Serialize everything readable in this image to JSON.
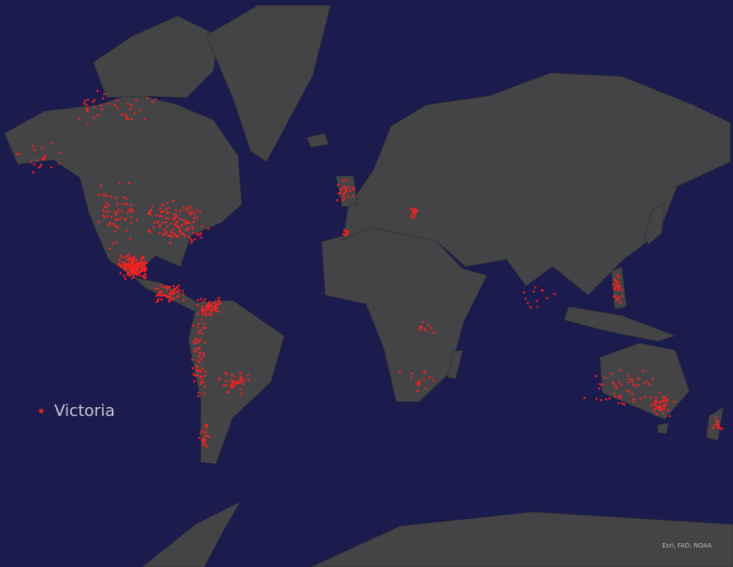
{
  "map": {
    "basemap": "world dark gray canvas",
    "colors": {
      "ocean": "#1b1b4e",
      "land": "#444447",
      "points": "#ff2020"
    },
    "legend": {
      "label": "Victoria",
      "symbol": "red-dot"
    },
    "attribution": "Esri, FAO, NOAA"
  }
}
